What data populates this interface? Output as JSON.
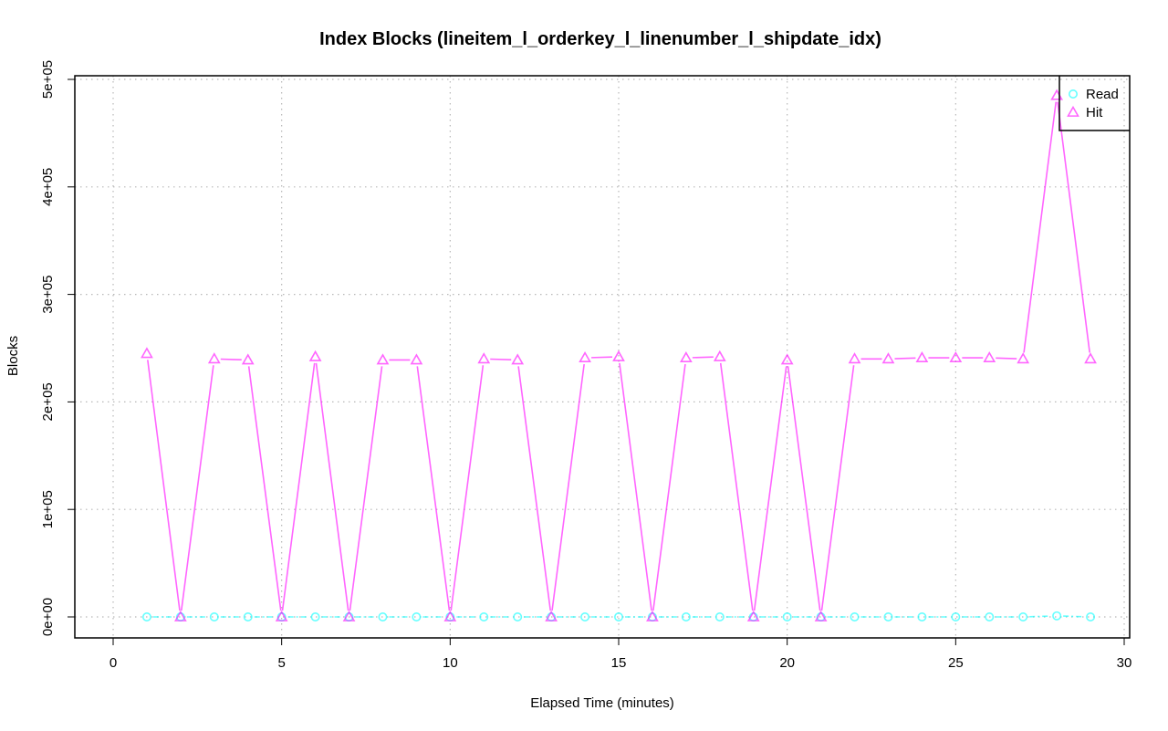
{
  "chart_data": {
    "type": "line",
    "title": "Index Blocks (lineitem_l_orderkey_l_linenumber_l_shipdate_idx)",
    "xlabel": "Elapsed Time (minutes)",
    "ylabel": "Blocks",
    "xlim": [
      0,
      30
    ],
    "ylim": [
      0,
      500000
    ],
    "x_ticks": [
      0,
      5,
      10,
      15,
      20,
      25,
      30
    ],
    "x_tick_labels": [
      "0",
      "5",
      "10",
      "15",
      "20",
      "25",
      "30"
    ],
    "y_ticks": [
      0,
      100000,
      200000,
      300000,
      400000,
      500000
    ],
    "y_tick_labels": [
      "0e+00",
      "1e+05",
      "2e+05",
      "3e+05",
      "4e+05",
      "5e+05"
    ],
    "grid": true,
    "legend_position": "top-right",
    "x": [
      1,
      2,
      3,
      4,
      5,
      6,
      7,
      8,
      9,
      10,
      11,
      12,
      13,
      14,
      15,
      16,
      17,
      18,
      19,
      20,
      21,
      22,
      23,
      24,
      25,
      26,
      27,
      28,
      29
    ],
    "series": [
      {
        "name": "Read",
        "color": "#00FFFF",
        "marker": "circle",
        "values": [
          0,
          0,
          0,
          0,
          0,
          0,
          0,
          0,
          0,
          0,
          0,
          0,
          0,
          0,
          0,
          0,
          0,
          0,
          0,
          0,
          0,
          0,
          0,
          0,
          0,
          0,
          0,
          1000,
          0
        ]
      },
      {
        "name": "Hit",
        "color": "#FF00FF",
        "marker": "triangle",
        "values": [
          245000,
          0,
          240000,
          239000,
          0,
          242000,
          0,
          239000,
          239000,
          0,
          240000,
          239000,
          0,
          241000,
          242000,
          0,
          241000,
          242000,
          0,
          239000,
          0,
          240000,
          240000,
          241000,
          241000,
          241000,
          240000,
          485000,
          240000
        ]
      }
    ]
  }
}
